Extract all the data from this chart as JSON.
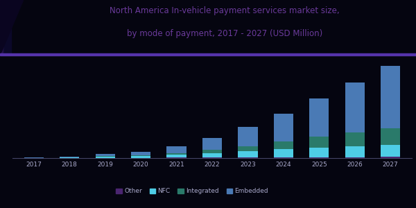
{
  "title_line1": "North America In-vehicle payment services market size,",
  "title_line2": "by mode of payment, 2017 - 2027 (USD Million)",
  "years": [
    2017,
    2018,
    2019,
    2020,
    2021,
    2022,
    2023,
    2024,
    2025,
    2026,
    2027
  ],
  "series_order": [
    "Other",
    "NFC",
    "Integrated",
    "Embedded"
  ],
  "series": {
    "Other": [
      0.3,
      0.5,
      0.8,
      1.0,
      1.5,
      2.0,
      2.5,
      3.0,
      3.5,
      4.0,
      4.5
    ],
    "NFC": [
      0.5,
      2.5,
      5.0,
      7.0,
      12.0,
      18.0,
      25.0,
      32.0,
      38.0,
      42.0,
      46.0
    ],
    "Integrated": [
      0.2,
      0.5,
      1.5,
      2.5,
      6.0,
      12.0,
      20.0,
      30.0,
      42.0,
      55.0,
      68.0
    ],
    "Embedded": [
      0.5,
      3.0,
      8.0,
      14.0,
      28.0,
      48.0,
      75.0,
      110.0,
      150.0,
      195.0,
      245.0
    ]
  },
  "colors": {
    "Other": "#4a2570",
    "NFC": "#4ecde6",
    "Integrated": "#2a7a6a",
    "Embedded": "#4a7ab5"
  },
  "background_color": "#050510",
  "title_color": "#6a3a9a",
  "title_fontsize": 8.5,
  "bar_width": 0.55,
  "legend_labels": [
    "Other",
    "NFC",
    "Integrated",
    "Embedded"
  ],
  "legend_colors": [
    "#4a2570",
    "#4ecde6",
    "#2a7a6a",
    "#4a7ab5"
  ],
  "header_color_left": "#4a2080",
  "header_color_right": "#1a1050",
  "header_line_color": "#5533aa",
  "axis_line_color": "#444466"
}
